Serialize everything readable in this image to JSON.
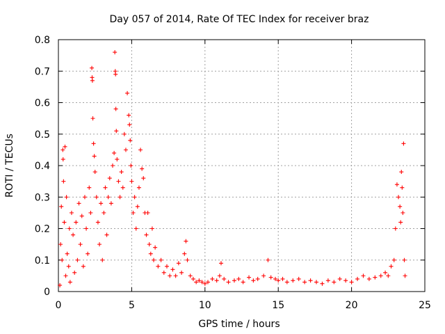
{
  "chart_data": {
    "type": "scatter",
    "title": "Day 057 of 2014, Rate Of TEC Index for receiver braz",
    "xlabel": "GPS time / hours",
    "ylabel": "ROTI / TECUs",
    "xlim": [
      0,
      25
    ],
    "ylim": [
      0,
      0.8
    ],
    "x_ticks": [
      0,
      5,
      10,
      15,
      20,
      25
    ],
    "x_tick_labels": [
      "0",
      "5",
      "10",
      "15",
      "20",
      "25"
    ],
    "y_ticks": [
      0,
      0.1,
      0.2,
      0.3,
      0.4,
      0.5,
      0.6,
      0.7,
      0.8
    ],
    "y_tick_labels": [
      "0",
      "0.1",
      "0.2",
      "0.3",
      "0.4",
      "0.5",
      "0.6",
      "0.7",
      "0.8"
    ],
    "grid": true,
    "marker": "plus",
    "marker_color": "#ff0000",
    "points": [
      [
        0.1,
        0.02
      ],
      [
        0.15,
        0.15
      ],
      [
        0.2,
        0.27
      ],
      [
        0.25,
        0.1
      ],
      [
        0.3,
        0.45
      ],
      [
        0.32,
        0.42
      ],
      [
        0.35,
        0.35
      ],
      [
        0.4,
        0.22
      ],
      [
        0.45,
        0.46
      ],
      [
        0.5,
        0.05
      ],
      [
        0.55,
        0.3
      ],
      [
        0.6,
        0.12
      ],
      [
        0.7,
        0.08
      ],
      [
        0.75,
        0.2
      ],
      [
        0.8,
        0.03
      ],
      [
        0.9,
        0.25
      ],
      [
        1.0,
        0.18
      ],
      [
        1.1,
        0.06
      ],
      [
        1.2,
        0.22
      ],
      [
        1.3,
        0.1
      ],
      [
        1.4,
        0.28
      ],
      [
        1.5,
        0.15
      ],
      [
        1.6,
        0.24
      ],
      [
        1.7,
        0.08
      ],
      [
        1.8,
        0.3
      ],
      [
        1.9,
        0.2
      ],
      [
        2.0,
        0.12
      ],
      [
        2.1,
        0.33
      ],
      [
        2.2,
        0.25
      ],
      [
        2.28,
        0.71
      ],
      [
        2.3,
        0.68
      ],
      [
        2.32,
        0.67
      ],
      [
        2.35,
        0.55
      ],
      [
        2.4,
        0.47
      ],
      [
        2.45,
        0.43
      ],
      [
        2.5,
        0.38
      ],
      [
        2.6,
        0.3
      ],
      [
        2.7,
        0.22
      ],
      [
        2.8,
        0.15
      ],
      [
        2.9,
        0.28
      ],
      [
        3.0,
        0.1
      ],
      [
        3.1,
        0.25
      ],
      [
        3.2,
        0.33
      ],
      [
        3.3,
        0.18
      ],
      [
        3.4,
        0.3
      ],
      [
        3.5,
        0.36
      ],
      [
        3.6,
        0.28
      ],
      [
        3.7,
        0.4
      ],
      [
        3.8,
        0.44
      ],
      [
        3.85,
        0.76
      ],
      [
        3.88,
        0.7
      ],
      [
        3.9,
        0.69
      ],
      [
        3.92,
        0.58
      ],
      [
        3.95,
        0.51
      ],
      [
        4.0,
        0.42
      ],
      [
        4.1,
        0.35
      ],
      [
        4.2,
        0.3
      ],
      [
        4.3,
        0.38
      ],
      [
        4.4,
        0.33
      ],
      [
        4.5,
        0.5
      ],
      [
        4.6,
        0.45
      ],
      [
        4.7,
        0.63
      ],
      [
        4.8,
        0.56
      ],
      [
        4.85,
        0.53
      ],
      [
        4.9,
        0.48
      ],
      [
        4.95,
        0.4
      ],
      [
        5.0,
        0.35
      ],
      [
        5.1,
        0.25
      ],
      [
        5.2,
        0.3
      ],
      [
        5.3,
        0.2
      ],
      [
        5.4,
        0.27
      ],
      [
        5.5,
        0.33
      ],
      [
        5.6,
        0.45
      ],
      [
        5.7,
        0.39
      ],
      [
        5.8,
        0.36
      ],
      [
        5.9,
        0.25
      ],
      [
        6.0,
        0.18
      ],
      [
        6.1,
        0.25
      ],
      [
        6.2,
        0.15
      ],
      [
        6.3,
        0.12
      ],
      [
        6.4,
        0.2
      ],
      [
        6.5,
        0.1
      ],
      [
        6.6,
        0.14
      ],
      [
        6.8,
        0.08
      ],
      [
        7.0,
        0.1
      ],
      [
        7.2,
        0.06
      ],
      [
        7.4,
        0.08
      ],
      [
        7.6,
        0.05
      ],
      [
        7.8,
        0.07
      ],
      [
        8.0,
        0.05
      ],
      [
        8.2,
        0.09
      ],
      [
        8.4,
        0.06
      ],
      [
        8.6,
        0.12
      ],
      [
        8.7,
        0.16
      ],
      [
        8.8,
        0.1
      ],
      [
        9.0,
        0.05
      ],
      [
        9.2,
        0.04
      ],
      [
        9.4,
        0.03
      ],
      [
        9.6,
        0.035
      ],
      [
        9.8,
        0.03
      ],
      [
        10.0,
        0.025
      ],
      [
        10.2,
        0.03
      ],
      [
        10.5,
        0.04
      ],
      [
        10.8,
        0.035
      ],
      [
        11.0,
        0.05
      ],
      [
        11.1,
        0.09
      ],
      [
        11.3,
        0.04
      ],
      [
        11.6,
        0.03
      ],
      [
        12.0,
        0.035
      ],
      [
        12.3,
        0.04
      ],
      [
        12.6,
        0.03
      ],
      [
        13.0,
        0.045
      ],
      [
        13.3,
        0.035
      ],
      [
        13.6,
        0.04
      ],
      [
        14.0,
        0.05
      ],
      [
        14.3,
        0.1
      ],
      [
        14.5,
        0.045
      ],
      [
        14.8,
        0.04
      ],
      [
        15.0,
        0.035
      ],
      [
        15.3,
        0.04
      ],
      [
        15.6,
        0.03
      ],
      [
        16.0,
        0.035
      ],
      [
        16.4,
        0.04
      ],
      [
        16.8,
        0.03
      ],
      [
        17.2,
        0.035
      ],
      [
        17.6,
        0.03
      ],
      [
        18.0,
        0.025
      ],
      [
        18.4,
        0.035
      ],
      [
        18.8,
        0.03
      ],
      [
        19.2,
        0.04
      ],
      [
        19.6,
        0.035
      ],
      [
        20.0,
        0.03
      ],
      [
        20.4,
        0.04
      ],
      [
        20.8,
        0.05
      ],
      [
        21.2,
        0.04
      ],
      [
        21.6,
        0.045
      ],
      [
        22.0,
        0.05
      ],
      [
        22.3,
        0.06
      ],
      [
        22.5,
        0.05
      ],
      [
        22.7,
        0.08
      ],
      [
        22.9,
        0.1
      ],
      [
        23.0,
        0.2
      ],
      [
        23.1,
        0.34
      ],
      [
        23.2,
        0.3
      ],
      [
        23.3,
        0.27
      ],
      [
        23.35,
        0.22
      ],
      [
        23.4,
        0.38
      ],
      [
        23.45,
        0.33
      ],
      [
        23.5,
        0.25
      ],
      [
        23.55,
        0.47
      ],
      [
        23.6,
        0.1
      ],
      [
        23.65,
        0.05
      ]
    ]
  }
}
